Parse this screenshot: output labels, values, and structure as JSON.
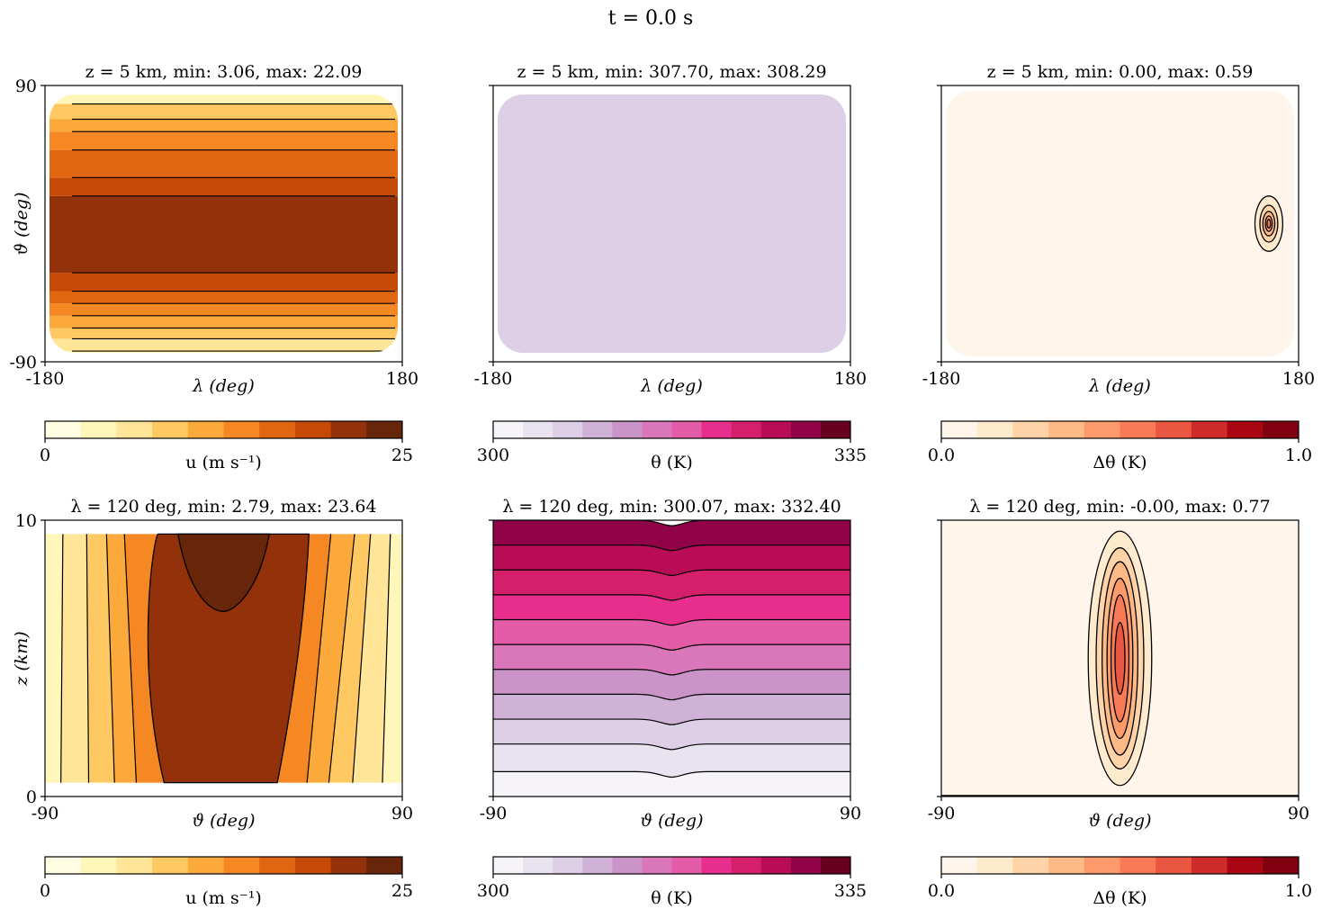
{
  "suptitle": "t = 0.0 s",
  "colorbars": {
    "u": {
      "label": "u (m s⁻¹)",
      "min_label": "0",
      "max_label": "25",
      "colors": [
        "#fffee2",
        "#fff6b9",
        "#fee597",
        "#fec962",
        "#fca93c",
        "#f68823",
        "#e06612",
        "#c44a06",
        "#92310a",
        "#672509"
      ]
    },
    "theta": {
      "label": "θ (K)",
      "min_label": "300",
      "max_label": "335",
      "colors": [
        "#f7f4f9",
        "#e9e3f0",
        "#ddcfe6",
        "#d0b2d8",
        "#ca94c8",
        "#d977ba",
        "#e45ba8",
        "#e72e8c",
        "#d61f6b",
        "#b80c57",
        "#900349",
        "#67001f"
      ]
    },
    "dtheta": {
      "label": "Δθ (K)",
      "min_label": "0.0",
      "max_label": "1.0",
      "colors": [
        "#fff5eb",
        "#feeacd",
        "#fdd3a7",
        "#fdb986",
        "#fc9a6b",
        "#f87a56",
        "#e95642",
        "#ce2b2b",
        "#a90512",
        "#800010"
      ]
    }
  },
  "chart_data": [
    {
      "type": "contour",
      "title": "z = 5 km, min: 3.06, max: 22.09",
      "xlabel": "λ (deg)",
      "ylabel": "ϑ (deg)",
      "xlim": [
        -180,
        180
      ],
      "ylim": [
        -90,
        90
      ],
      "xticks": [
        "-180",
        "180"
      ],
      "yticks": [
        "-90",
        "90"
      ],
      "field": "u",
      "colorbar_range": [
        0,
        25
      ],
      "min": 3.06,
      "max": 22.09,
      "bands": [
        {
          "from": -90,
          "to": -83,
          "level": 1
        },
        {
          "from": -83,
          "to": -75,
          "level": 2
        },
        {
          "from": -75,
          "to": -68,
          "level": 3
        },
        {
          "from": -68,
          "to": -60,
          "level": 4
        },
        {
          "from": -60,
          "to": -52,
          "level": 5
        },
        {
          "from": -52,
          "to": -44,
          "level": 6
        },
        {
          "from": -44,
          "to": -32,
          "level": 7
        },
        {
          "from": -32,
          "to": 18,
          "level": 8
        },
        {
          "from": 18,
          "to": 30,
          "level": 7
        },
        {
          "from": 30,
          "to": 48,
          "level": 6
        },
        {
          "from": 48,
          "to": 60,
          "level": 5
        },
        {
          "from": 60,
          "to": 68,
          "level": 4
        },
        {
          "from": 68,
          "to": 78,
          "level": 3
        },
        {
          "from": 78,
          "to": 90,
          "level": 1
        }
      ]
    },
    {
      "type": "contour",
      "title": "z = 5 km, min: 307.70, max: 308.29",
      "xlabel": "λ (deg)",
      "ylabel": "",
      "xlim": [
        -180,
        180
      ],
      "ylim": [
        -90,
        90
      ],
      "xticks": [
        "-180",
        "180"
      ],
      "yticks": [],
      "field": "theta",
      "colorbar_range": [
        300,
        335
      ],
      "min": 307.7,
      "max": 308.29,
      "bands": [
        {
          "from": -90,
          "to": 90,
          "level": 2
        }
      ]
    },
    {
      "type": "contour",
      "title": "z = 5 km, min: 0.00, max: 0.59",
      "xlabel": "λ (deg)",
      "ylabel": "",
      "xlim": [
        -180,
        180
      ],
      "ylim": [
        -90,
        90
      ],
      "xticks": [
        "-180",
        "180"
      ],
      "yticks": [],
      "field": "dtheta",
      "colorbar_range": [
        0,
        1
      ],
      "min": 0.0,
      "max": 0.59,
      "background_level": 0,
      "blob": {
        "lon": 150,
        "lat": 0,
        "rings": [
          {
            "rx": 14,
            "ry": 18,
            "level": 1
          },
          {
            "rx": 9,
            "ry": 12,
            "level": 2
          },
          {
            "rx": 6,
            "ry": 8,
            "level": 3
          },
          {
            "rx": 3.5,
            "ry": 5,
            "level": 4
          },
          {
            "rx": 1.8,
            "ry": 2.8,
            "level": 5
          }
        ]
      }
    },
    {
      "type": "contour",
      "title": "λ = 120 deg, min: 2.79, max: 23.64",
      "xlabel": "ϑ (deg)",
      "ylabel": "z (km)",
      "xlim": [
        -90,
        90
      ],
      "ylim": [
        0,
        10
      ],
      "xticks": [
        "-90",
        "90"
      ],
      "yticks": [
        "0",
        "10"
      ],
      "field": "u",
      "colorbar_range": [
        0,
        25
      ],
      "min": 2.79,
      "max": 23.64,
      "y_extent": [
        0.5,
        9.5
      ],
      "profile_bottom": [
        {
          "from": -90,
          "to": -82,
          "level": 1
        },
        {
          "from": -82,
          "to": -68,
          "level": 2
        },
        {
          "from": -68,
          "to": -55,
          "level": 3
        },
        {
          "from": -55,
          "to": -44,
          "level": 4
        },
        {
          "from": -44,
          "to": -30,
          "level": 5
        },
        {
          "from": -30,
          "to": -12,
          "level": 6
        },
        {
          "from": -12,
          "to": 8,
          "level": 8
        },
        {
          "from": 8,
          "to": 27,
          "level": 6
        },
        {
          "from": 27,
          "to": 42,
          "level": 5
        },
        {
          "from": 42,
          "to": 53,
          "level": 4
        },
        {
          "from": 53,
          "to": 65,
          "level": 3
        },
        {
          "from": 65,
          "to": 80,
          "level": 2
        },
        {
          "from": 80,
          "to": 90,
          "level": 1
        }
      ],
      "profile_top": [
        {
          "from": -90,
          "to": -81,
          "level": 1
        },
        {
          "from": -81,
          "to": -69,
          "level": 2
        },
        {
          "from": -69,
          "to": -59,
          "level": 3
        },
        {
          "from": -59,
          "to": -50,
          "level": 4
        },
        {
          "from": -50,
          "to": -33,
          "level": 5
        },
        {
          "from": -33,
          "to": -18,
          "level": 7
        },
        {
          "from": -18,
          "to": 18,
          "level": 9
        },
        {
          "from": 18,
          "to": 43,
          "level": 7
        },
        {
          "from": 43,
          "to": 54,
          "level": 5
        },
        {
          "from": 54,
          "to": 66,
          "level": 4
        },
        {
          "from": 66,
          "to": 74,
          "level": 3
        },
        {
          "from": 74,
          "to": 84,
          "level": 2
        },
        {
          "from": 84,
          "to": 90,
          "level": 1
        }
      ],
      "core": {
        "level": 9,
        "lat_left": -18,
        "lat_right": 18,
        "z_bottom": 6.7
      }
    },
    {
      "type": "contour",
      "title": "λ = 120 deg, min: 300.07, max: 332.40",
      "xlabel": "ϑ (deg)",
      "ylabel": "",
      "xlim": [
        -90,
        90
      ],
      "ylim": [
        0,
        10
      ],
      "xticks": [
        "-90",
        "90"
      ],
      "yticks": [],
      "field": "theta",
      "colorbar_range": [
        300,
        335
      ],
      "min": 300.07,
      "max": 332.4,
      "layers": [
        {
          "from": 0,
          "to": 0.9,
          "level": 0
        },
        {
          "from": 0.9,
          "to": 1.9,
          "level": 1
        },
        {
          "from": 1.9,
          "to": 2.8,
          "level": 2
        },
        {
          "from": 2.8,
          "to": 3.7,
          "level": 3
        },
        {
          "from": 3.7,
          "to": 4.6,
          "level": 4
        },
        {
          "from": 4.6,
          "to": 5.5,
          "level": 5
        },
        {
          "from": 5.5,
          "to": 6.4,
          "level": 6
        },
        {
          "from": 6.4,
          "to": 7.3,
          "level": 7
        },
        {
          "from": 7.3,
          "to": 8.2,
          "level": 8
        },
        {
          "from": 8.2,
          "to": 9.1,
          "level": 9
        },
        {
          "from": 9.1,
          "to": 10,
          "level": 10
        }
      ],
      "dip_km": 0.2
    },
    {
      "type": "contour",
      "title": "λ = 120 deg, min: -0.00, max: 0.77",
      "xlabel": "ϑ (deg)",
      "ylabel": "",
      "xlim": [
        -90,
        90
      ],
      "ylim": [
        0,
        10
      ],
      "xticks": [
        "-90",
        "90"
      ],
      "yticks": [],
      "field": "dtheta",
      "colorbar_range": [
        0,
        1
      ],
      "min": -0.0,
      "max": 0.77,
      "background_level": 0,
      "blob": {
        "lat": 0,
        "z": 5,
        "rings": [
          {
            "rx": 16,
            "ry": 4.6,
            "level": 1
          },
          {
            "rx": 12,
            "ry": 4.0,
            "level": 2
          },
          {
            "rx": 9,
            "ry": 3.5,
            "level": 3
          },
          {
            "rx": 6.5,
            "ry": 2.9,
            "level": 4
          },
          {
            "rx": 4.5,
            "ry": 2.3,
            "level": 5
          },
          {
            "rx": 2.5,
            "ry": 1.3,
            "level": 6
          }
        ]
      }
    }
  ]
}
